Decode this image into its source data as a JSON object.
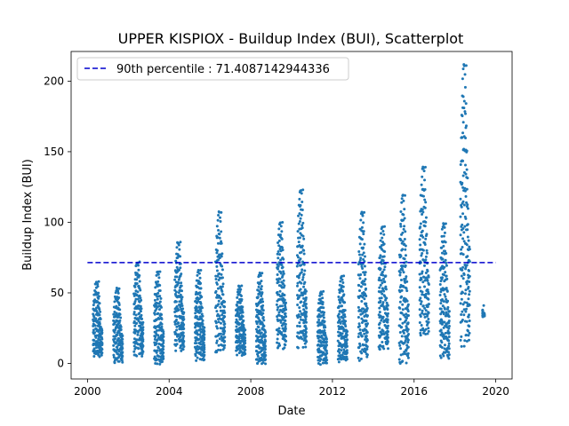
{
  "chart_data": {
    "type": "scatter",
    "title": "UPPER KISPIOX - Buildup Index (BUI), Scatterplot",
    "xlabel": "Date",
    "ylabel": "Buildup Index (BUI)",
    "xlim": [
      1999.2,
      2020.8
    ],
    "ylim": [
      -11,
      221
    ],
    "x_ticks": [
      2000,
      2004,
      2008,
      2012,
      2016,
      2020
    ],
    "x_tick_labels": [
      "2000",
      "2004",
      "2008",
      "2012",
      "2016",
      "2020"
    ],
    "y_ticks": [
      0,
      50,
      100,
      150,
      200
    ],
    "y_tick_labels": [
      "0",
      "50",
      "100",
      "150",
      "200"
    ],
    "grid": false,
    "legend": {
      "placement": "top-left",
      "entries": [
        "90th percentile : 71.4087142944336"
      ]
    },
    "reference_line": {
      "name": "90th percentile : 71.4087142944336",
      "value": 71.4087142944336,
      "x_range": [
        2000,
        2020
      ],
      "color": "#0000cd",
      "style": "dashed"
    },
    "series_color": "#1f77b4",
    "seasons": [
      {
        "year": 2000,
        "x_start": 2000.28,
        "x_end": 2000.72,
        "y_min": 5,
        "y_peak": 58
      },
      {
        "year": 2001,
        "x_start": 2001.28,
        "x_end": 2001.72,
        "y_min": 1,
        "y_peak": 53
      },
      {
        "year": 2002,
        "x_start": 2002.28,
        "x_end": 2002.72,
        "y_min": 6,
        "y_peak": 72
      },
      {
        "year": 2003,
        "x_start": 2003.28,
        "x_end": 2003.72,
        "y_min": 0,
        "y_peak": 65
      },
      {
        "year": 2004,
        "x_start": 2004.28,
        "x_end": 2004.72,
        "y_min": 9,
        "y_peak": 86
      },
      {
        "year": 2005,
        "x_start": 2005.28,
        "x_end": 2005.72,
        "y_min": 2,
        "y_peak": 66
      },
      {
        "year": 2006,
        "x_start": 2006.28,
        "x_end": 2006.72,
        "y_min": 8,
        "y_peak": 107
      },
      {
        "year": 2007,
        "x_start": 2007.28,
        "x_end": 2007.72,
        "y_min": 6,
        "y_peak": 55
      },
      {
        "year": 2008,
        "x_start": 2008.28,
        "x_end": 2008.72,
        "y_min": 0,
        "y_peak": 64
      },
      {
        "year": 2009,
        "x_start": 2009.28,
        "x_end": 2009.72,
        "y_min": 11,
        "y_peak": 100
      },
      {
        "year": 2010,
        "x_start": 2010.28,
        "x_end": 2010.72,
        "y_min": 11,
        "y_peak": 123
      },
      {
        "year": 2011,
        "x_start": 2011.28,
        "x_end": 2011.72,
        "y_min": 0,
        "y_peak": 51
      },
      {
        "year": 2012,
        "x_start": 2012.28,
        "x_end": 2012.72,
        "y_min": 1,
        "y_peak": 62
      },
      {
        "year": 2013,
        "x_start": 2013.28,
        "x_end": 2013.72,
        "y_min": 2,
        "y_peak": 107
      },
      {
        "year": 2014,
        "x_start": 2014.28,
        "x_end": 2014.72,
        "y_min": 10,
        "y_peak": 97
      },
      {
        "year": 2015,
        "x_start": 2015.28,
        "x_end": 2015.72,
        "y_min": 0,
        "y_peak": 119
      },
      {
        "year": 2016,
        "x_start": 2016.28,
        "x_end": 2016.72,
        "y_min": 20,
        "y_peak": 139
      },
      {
        "year": 2017,
        "x_start": 2017.28,
        "x_end": 2017.72,
        "y_min": 4,
        "y_peak": 99
      },
      {
        "year": 2018,
        "x_start": 2018.28,
        "x_end": 2018.72,
        "y_min": 12,
        "y_peak": 211
      },
      {
        "year": 2019,
        "x_start": 2019.36,
        "x_end": 2019.44,
        "y_min": 33,
        "y_peak": 41
      }
    ]
  }
}
